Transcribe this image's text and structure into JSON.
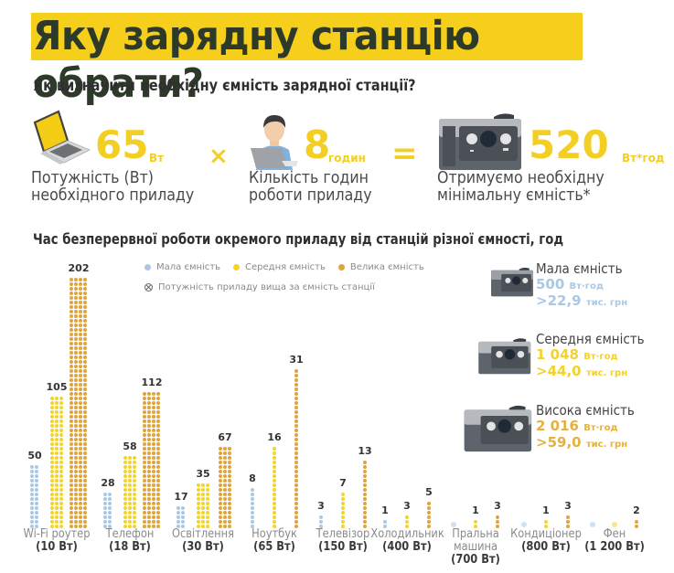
{
  "header": {
    "title": "Яку зарядну станцію обрати?",
    "subtitle": "Як визначити необхідну ємність зарядної станції?"
  },
  "formula": {
    "power": {
      "value": "65",
      "unit": "Вт",
      "label_line1": "Потужність (Вт)",
      "label_line2": "необхідного приладу",
      "icon": "laptop-icon"
    },
    "operator_multiply": "×",
    "hours": {
      "value": "8",
      "unit": "годин",
      "label_line1": "Кількість годин",
      "label_line2": "роботи приладу",
      "icon": "person-laptop-icon"
    },
    "operator_equals": "=",
    "result": {
      "value": "520",
      "unit": "Вт*год",
      "label_line1": "Отримуємо необхідну",
      "label_line2": "мінімальну ємність*",
      "icon": "power-station-icon"
    }
  },
  "section_title": "Час безперервної роботи окремого приладу від станцій різної ємності, год",
  "legend": {
    "items": [
      {
        "label": "Мала ємність",
        "color": "#a9c8e6"
      },
      {
        "label": "Середня ємність",
        "color": "#f4d42a"
      },
      {
        "label": "Велика ємність",
        "color": "#e0a43a"
      }
    ],
    "note": "Потужність приладу вища за ємність станції",
    "note_icon": "x-circle-icon"
  },
  "stations": [
    {
      "name": "Мала ємність",
      "capacity": "500",
      "capacity_unit": "Вт·год",
      "price": ">22,9",
      "price_unit": "тис. грн",
      "color": "#a9c8e6"
    },
    {
      "name": "Середня ємність",
      "capacity": "1 048",
      "capacity_unit": "Вт·год",
      "price": ">44,0",
      "price_unit": "тис. грн",
      "color": "#f2d22e"
    },
    {
      "name": "Висока ємність",
      "capacity": "2 016",
      "capacity_unit": "Вт·год",
      "price": ">59,0",
      "price_unit": "тис. грн",
      "color": "#e4b23e"
    }
  ],
  "chart_data": {
    "type": "bar",
    "title": "Час безперервної роботи окремого приладу від станцій різної ємності, год",
    "xlabel": "",
    "ylabel": "год",
    "categories": [
      {
        "name": "Wi-Fi роутер",
        "power": "(10 Вт)"
      },
      {
        "name": "Телефон",
        "power": "(18 Вт)"
      },
      {
        "name": "Освітлення",
        "power": "(30 Вт)"
      },
      {
        "name": "Ноутбук",
        "power": "(65 Вт)"
      },
      {
        "name": "Телевізор",
        "power": "(150 Вт)"
      },
      {
        "name": "Холодильник",
        "power": "(400 Вт)"
      },
      {
        "name": "Пральна машина",
        "power": "(700 Вт)"
      },
      {
        "name": "Кондиціонер",
        "power": "(800 Вт)"
      },
      {
        "name": "Фен",
        "power": "(1 200 Вт)"
      }
    ],
    "series": [
      {
        "name": "Мала ємність",
        "color": "#a9c8e6",
        "values": [
          50,
          28,
          17,
          8,
          3,
          1,
          null,
          null,
          null
        ],
        "labels": [
          "50",
          "28",
          "17",
          "8",
          "3",
          "1",
          "",
          "",
          ""
        ]
      },
      {
        "name": "Середня ємність",
        "color": "#f4d42a",
        "values": [
          105,
          58,
          35,
          16,
          7,
          3,
          1,
          1,
          null
        ],
        "labels": [
          "105",
          "58",
          "35",
          "16",
          "7",
          "3",
          "1",
          "1",
          ""
        ]
      },
      {
        "name": "Велика ємність",
        "color": "#e0a43a",
        "values": [
          202,
          112,
          67,
          31,
          13,
          5,
          3,
          3,
          2
        ],
        "labels": [
          "202",
          "112",
          "67",
          "31",
          "13",
          "5",
          "3",
          "3",
          "2"
        ]
      }
    ],
    "legend_position": "top",
    "grid": false
  }
}
